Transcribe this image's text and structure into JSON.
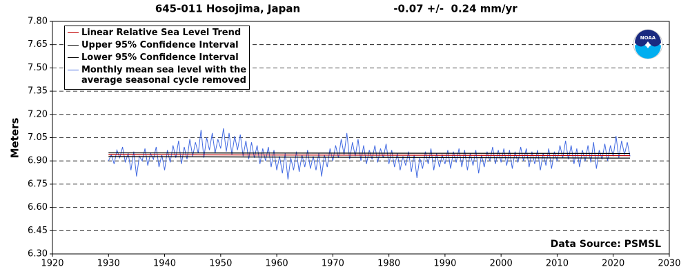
{
  "chart_data": {
    "type": "line",
    "title": "645-011 Hosojima, Japan",
    "subtitle": "-0.07 +/-  0.24 mm/yr",
    "y_label": "Meters",
    "annotation": "Data Source: PSMSL",
    "logo_text": "NOAA",
    "xlim": [
      1920,
      2030
    ],
    "xticks": [
      1920,
      1930,
      1940,
      1950,
      1960,
      1970,
      1980,
      1990,
      2000,
      2010,
      2020,
      2030
    ],
    "ylim": [
      6.3,
      7.8
    ],
    "yticks": [
      {
        "value": 6.3,
        "label": "6.30"
      },
      6.45,
      {
        "value": 6.6,
        "label": "6.60"
      },
      6.75,
      {
        "value": 6.9,
        "label": "6.90"
      },
      7.05,
      {
        "value": 7.2,
        "label": "7.20"
      },
      7.35,
      {
        "value": 7.5,
        "label": "7.50"
      },
      7.65,
      {
        "value": 7.8,
        "label": "7.80"
      }
    ],
    "grid": true,
    "legend": "upper left",
    "series": [
      {
        "name": "Linear Relative Sea Level Trend",
        "color": "#c00000",
        "x": [
          1930,
          2023
        ],
        "values": [
          6.94,
          6.934
        ]
      },
      {
        "name": "Upper 95% Confidence Interval",
        "color": "#000000",
        "x": [
          1930,
          2023
        ],
        "values": [
          6.952,
          6.948
        ]
      },
      {
        "name": "Lower 95% Confidence Interval",
        "color": "#000000",
        "x": [
          1930,
          2023
        ],
        "values": [
          6.928,
          6.918
        ]
      },
      {
        "name": "Monthly mean sea level with the\naverage seasonal cycle removed",
        "color": "#4169e1",
        "x": [
          1930,
          1930.5,
          1931,
          1931.5,
          1932,
          1932.5,
          1933,
          1933.5,
          1934,
          1934.5,
          1935,
          1935.5,
          1936,
          1936.5,
          1937,
          1937.5,
          1938,
          1938.5,
          1939,
          1939.5,
          1940,
          1940.5,
          1941,
          1941.5,
          1942,
          1942.5,
          1943,
          1943.5,
          1944,
          1944.5,
          1945,
          1945.5,
          1946,
          1946.5,
          1947,
          1947.5,
          1948,
          1948.5,
          1949,
          1949.5,
          1950,
          1950.5,
          1951,
          1951.5,
          1952,
          1952.5,
          1953,
          1953.5,
          1954,
          1954.5,
          1955,
          1955.5,
          1956,
          1956.5,
          1957,
          1957.5,
          1958,
          1958.5,
          1959,
          1959.5,
          1960,
          1960.5,
          1961,
          1961.5,
          1962,
          1962.5,
          1963,
          1963.5,
          1964,
          1964.5,
          1965,
          1965.5,
          1966,
          1966.5,
          1967,
          1967.5,
          1968,
          1968.5,
          1969,
          1969.5,
          1970,
          1970.5,
          1971,
          1971.5,
          1972,
          1972.5,
          1973,
          1973.5,
          1974,
          1974.5,
          1975,
          1975.5,
          1976,
          1976.5,
          1977,
          1977.5,
          1978,
          1978.5,
          1979,
          1979.5,
          1980,
          1980.5,
          1981,
          1981.5,
          1982,
          1982.5,
          1983,
          1983.5,
          1984,
          1984.5,
          1985,
          1985.5,
          1986,
          1986.5,
          1987,
          1987.5,
          1988,
          1988.5,
          1989,
          1989.5,
          1990,
          1990.5,
          1991,
          1991.5,
          1992,
          1992.5,
          1993,
          1993.5,
          1994,
          1994.5,
          1995,
          1995.5,
          1996,
          1996.5,
          1997,
          1997.5,
          1998,
          1998.5,
          1999,
          1999.5,
          2000,
          2000.5,
          2001,
          2001.5,
          2002,
          2002.5,
          2003,
          2003.5,
          2004,
          2004.5,
          2005,
          2005.5,
          2006,
          2006.5,
          2007,
          2007.5,
          2008,
          2008.5,
          2009,
          2009.5,
          2010,
          2010.5,
          2011,
          2011.5,
          2012,
          2012.5,
          2013,
          2013.5,
          2014,
          2014.5,
          2015,
          2015.5,
          2016,
          2016.5,
          2017,
          2017.5,
          2018,
          2018.5,
          2019,
          2019.5,
          2020,
          2020.5,
          2021,
          2021.5,
          2022,
          2022.5,
          2023
        ],
        "values": [
          6.9,
          6.94,
          6.88,
          6.97,
          6.92,
          6.99,
          6.89,
          6.95,
          6.84,
          6.96,
          6.8,
          6.93,
          6.9,
          6.98,
          6.87,
          6.95,
          6.91,
          6.99,
          6.86,
          6.94,
          6.84,
          6.97,
          6.89,
          7.0,
          6.92,
          7.03,
          6.88,
          6.99,
          6.91,
          7.04,
          6.93,
          7.02,
          6.95,
          7.1,
          6.92,
          7.05,
          6.97,
          7.08,
          6.95,
          7.04,
          6.98,
          7.11,
          6.96,
          7.08,
          6.94,
          7.06,
          6.97,
          7.07,
          6.93,
          7.03,
          6.91,
          7.02,
          6.92,
          7.0,
          6.88,
          6.98,
          6.9,
          6.99,
          6.86,
          6.97,
          6.84,
          6.93,
          6.82,
          6.95,
          6.78,
          6.92,
          6.84,
          6.96,
          6.83,
          6.94,
          6.86,
          6.97,
          6.85,
          6.93,
          6.84,
          6.95,
          6.8,
          6.94,
          6.86,
          6.98,
          6.9,
          7.0,
          6.92,
          7.04,
          6.94,
          7.08,
          6.91,
          7.02,
          6.93,
          7.04,
          6.9,
          7.0,
          6.88,
          6.97,
          6.91,
          7.0,
          6.89,
          6.98,
          6.92,
          7.01,
          6.88,
          6.97,
          6.86,
          6.95,
          6.84,
          6.93,
          6.87,
          6.96,
          6.83,
          6.94,
          6.79,
          6.92,
          6.85,
          6.96,
          6.88,
          6.98,
          6.84,
          6.95,
          6.86,
          6.94,
          6.88,
          6.97,
          6.85,
          6.96,
          6.89,
          6.98,
          6.86,
          6.97,
          6.84,
          6.95,
          6.87,
          6.97,
          6.82,
          6.94,
          6.86,
          6.96,
          6.9,
          6.99,
          6.88,
          6.97,
          6.89,
          6.98,
          6.87,
          6.97,
          6.85,
          6.96,
          6.89,
          6.99,
          6.9,
          6.98,
          6.86,
          6.96,
          6.88,
          6.97,
          6.84,
          6.95,
          6.87,
          6.98,
          6.85,
          6.96,
          6.9,
          7.0,
          6.92,
          7.03,
          6.91,
          7.0,
          6.88,
          6.98,
          6.86,
          6.97,
          6.9,
          7.0,
          6.89,
          7.02,
          6.85,
          6.97,
          6.91,
          7.01,
          6.9,
          7.0,
          6.93,
          7.06,
          6.92,
          7.03,
          6.94,
          7.02,
          6.93
        ]
      }
    ]
  }
}
